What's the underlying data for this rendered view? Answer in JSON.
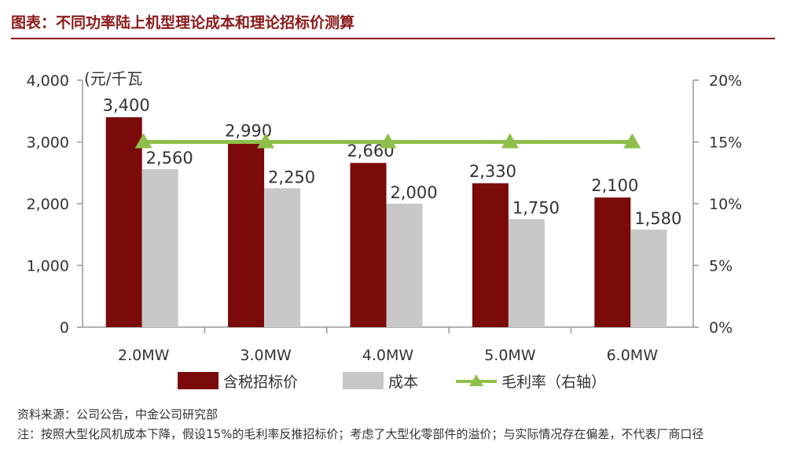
{
  "header": {
    "title": "图表：不同功率陆上机型理论成本和理论招标价测算"
  },
  "chart_data": {
    "type": "bar",
    "categories": [
      "2.0MW",
      "3.0MW",
      "4.0MW",
      "5.0MW",
      "6.0MW"
    ],
    "series": [
      {
        "name": "含税招标价",
        "values": [
          3400,
          2990,
          2660,
          2330,
          2100
        ],
        "color": "#7b0a0a",
        "data_labels": [
          "3,400",
          "2,990",
          "2,660",
          "2,330",
          "2,100"
        ]
      },
      {
        "name": "成本",
        "values": [
          2560,
          2250,
          2000,
          1750,
          1580
        ],
        "color": "#c8c8c8",
        "data_labels": [
          "2,560",
          "2,250",
          "2,000",
          "1,750",
          "1,580"
        ]
      }
    ],
    "line_series": {
      "name": "毛利率（右轴）",
      "values": [
        0.15,
        0.15,
        0.15,
        0.15,
        0.15
      ],
      "color": "#8fbf4a",
      "axis": "right"
    },
    "y_left": {
      "label": "(元/千瓦",
      "range": [
        0,
        4000
      ],
      "ticks": [
        0,
        1000,
        2000,
        3000,
        4000
      ],
      "tick_labels": [
        "0",
        "1,000",
        "2,000",
        "3,000",
        "4,000"
      ]
    },
    "y_right": {
      "range": [
        0,
        0.2
      ],
      "ticks": [
        0,
        0.05,
        0.1,
        0.15,
        0.2
      ],
      "tick_labels": [
        "0%",
        "5%",
        "10%",
        "15%",
        "20%"
      ]
    },
    "grid": false,
    "legend_position": "bottom"
  },
  "notes": {
    "source": "资料来源：公司公告，中金公司研究部",
    "note": "注：按照大型化风机成本下降，假设15%的毛利率反推招标价；考虑了大型化零部件的溢价；与实际情况存在偏差，不代表厂商口径"
  }
}
